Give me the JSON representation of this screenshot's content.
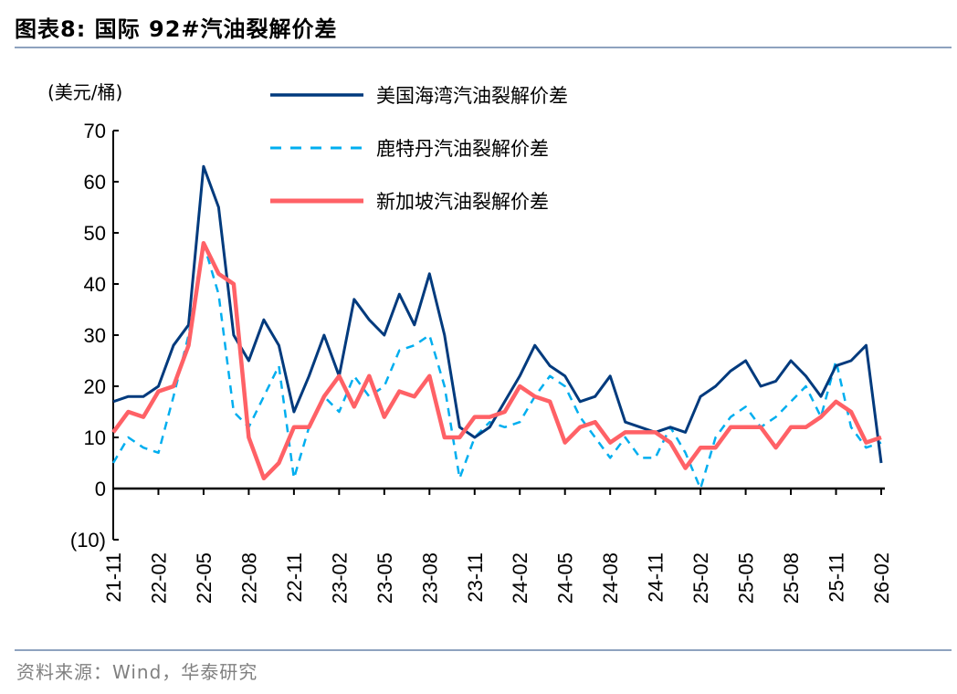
{
  "title": "图表8:   国际 92#汽油裂解价差",
  "source": "资料来源：Wind，华泰研究",
  "chart_data": {
    "type": "line",
    "title": "",
    "ylabel": "(美元/桶)",
    "ylim": [
      -10,
      70
    ],
    "yticks": [
      {
        "v": 70,
        "label": "70"
      },
      {
        "v": 60,
        "label": "60"
      },
      {
        "v": 50,
        "label": "50"
      },
      {
        "v": 40,
        "label": "40"
      },
      {
        "v": 30,
        "label": "30"
      },
      {
        "v": 20,
        "label": "20"
      },
      {
        "v": 10,
        "label": "10"
      },
      {
        "v": 0,
        "label": "0"
      },
      {
        "v": -10,
        "label": "(10)"
      }
    ],
    "xticks": [
      "21-11",
      "22-02",
      "22-05",
      "22-08",
      "22-11",
      "23-02",
      "23-05",
      "23-08",
      "23-11",
      "24-02",
      "24-05",
      "24-08",
      "24-11",
      "25-02",
      "25-05",
      "25-08",
      "25-11",
      "26-02"
    ],
    "x": [
      "21-11",
      "21-12",
      "22-01",
      "22-02",
      "22-03",
      "22-04",
      "22-05",
      "22-06",
      "22-07",
      "22-08",
      "22-09",
      "22-10",
      "22-11",
      "22-12",
      "23-01",
      "23-02",
      "23-03",
      "23-04",
      "23-05",
      "23-06",
      "23-07",
      "23-08",
      "23-09",
      "23-10",
      "23-11",
      "23-12",
      "24-01",
      "24-02",
      "24-03",
      "24-04",
      "24-05",
      "24-06",
      "24-07",
      "24-08",
      "24-09",
      "24-10",
      "24-11",
      "24-12",
      "25-01",
      "25-02",
      "25-03",
      "25-04",
      "25-05",
      "25-06",
      "25-07",
      "25-08",
      "25-09",
      "25-10",
      "25-11",
      "25-12",
      "26-01",
      "26-02"
    ],
    "grid": false,
    "legend": "top-right",
    "series": [
      {
        "name": "美国海湾汽油裂解价差",
        "color": "#003a7d",
        "style": "solid",
        "values": [
          17,
          18,
          18,
          20,
          28,
          32,
          63,
          55,
          30,
          25,
          33,
          28,
          15,
          22,
          30,
          22,
          37,
          33,
          30,
          38,
          32,
          42,
          30,
          12,
          10,
          12,
          17,
          22,
          28,
          24,
          22,
          17,
          18,
          22,
          13,
          12,
          11,
          12,
          11,
          18,
          20,
          23,
          25,
          20,
          21,
          25,
          22,
          18,
          24,
          25,
          28,
          5
        ]
      },
      {
        "name": "鹿特丹汽油裂解价差",
        "color": "#00aeef",
        "style": "dashed",
        "values": [
          5,
          10,
          8,
          7,
          18,
          30,
          48,
          38,
          15,
          12,
          18,
          24,
          2,
          12,
          18,
          15,
          22,
          18,
          20,
          27,
          28,
          30,
          20,
          2,
          10,
          13,
          12,
          13,
          18,
          22,
          20,
          14,
          10,
          6,
          10,
          6,
          6,
          12,
          7,
          0,
          10,
          14,
          16,
          12,
          14,
          17,
          20,
          14,
          25,
          12,
          8,
          9
        ]
      },
      {
        "name": "新加坡汽油裂解价差",
        "color": "#ff6166",
        "style": "solid",
        "values": [
          11,
          15,
          14,
          19,
          20,
          28,
          48,
          42,
          40,
          10,
          2,
          5,
          12,
          12,
          18,
          22,
          16,
          22,
          14,
          19,
          18,
          22,
          10,
          10,
          14,
          14,
          15,
          20,
          18,
          17,
          9,
          12,
          13,
          9,
          11,
          11,
          11,
          9,
          4,
          8,
          8,
          12,
          12,
          12,
          8,
          12,
          12,
          14,
          17,
          15,
          9,
          10
        ]
      }
    ]
  }
}
